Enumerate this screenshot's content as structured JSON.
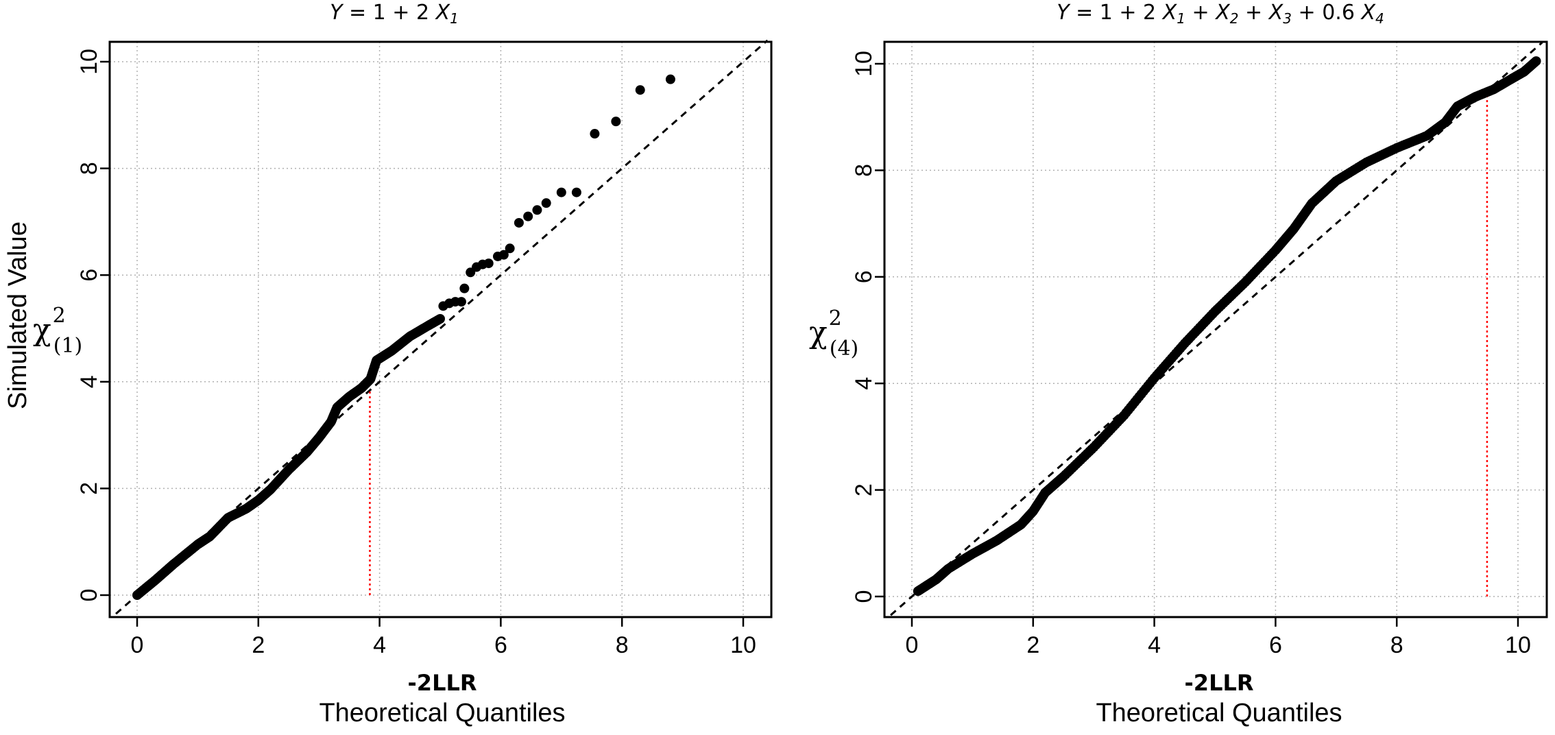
{
  "chart_data": [
    {
      "type": "scatter",
      "title": "Y = 1 + 2 X1",
      "title_parts": {
        "y": "Y",
        "eq": " = 1 + 2 ",
        "x1": "X",
        "x1sub": "1"
      },
      "xlabel_top": "-2LLR",
      "xlabel": "Theoretical Quantiles",
      "ylabel": "Simulated Value",
      "ylabel_chi": {
        "chi": "χ",
        "sup": "2",
        "sub": "(1)"
      },
      "xlim": [
        0,
        10
      ],
      "ylim": [
        0,
        10
      ],
      "xticks": [
        "0",
        "2",
        "4",
        "6",
        "8",
        "10"
      ],
      "yticks": [
        "0",
        "2",
        "4",
        "6",
        "8",
        "10"
      ],
      "grid": true,
      "reference_line": {
        "slope": 1,
        "intercept": 0,
        "style": "dashed"
      },
      "cutoff_line": {
        "x": 3.84,
        "y_from": 0,
        "y_to": 3.84,
        "color": "#ff0000"
      },
      "dense_curve": [
        [
          0.0,
          0.0
        ],
        [
          0.3,
          0.28
        ],
        [
          0.6,
          0.58
        ],
        [
          1.0,
          0.95
        ],
        [
          1.2,
          1.1
        ],
        [
          1.5,
          1.45
        ],
        [
          1.8,
          1.62
        ],
        [
          2.0,
          1.78
        ],
        [
          2.2,
          1.98
        ],
        [
          2.5,
          2.35
        ],
        [
          2.8,
          2.68
        ],
        [
          3.0,
          2.95
        ],
        [
          3.2,
          3.25
        ],
        [
          3.3,
          3.52
        ],
        [
          3.5,
          3.72
        ],
        [
          3.7,
          3.88
        ],
        [
          3.85,
          4.05
        ],
        [
          3.95,
          4.4
        ],
        [
          4.2,
          4.58
        ],
        [
          4.5,
          4.85
        ],
        [
          4.8,
          5.05
        ],
        [
          5.0,
          5.18
        ]
      ],
      "points": [
        [
          5.05,
          5.42
        ],
        [
          5.15,
          5.47
        ],
        [
          5.25,
          5.5
        ],
        [
          5.35,
          5.5
        ],
        [
          5.4,
          5.75
        ],
        [
          5.5,
          6.05
        ],
        [
          5.6,
          6.15
        ],
        [
          5.7,
          6.2
        ],
        [
          5.8,
          6.22
        ],
        [
          5.95,
          6.35
        ],
        [
          6.05,
          6.38
        ],
        [
          6.15,
          6.5
        ],
        [
          6.3,
          6.98
        ],
        [
          6.45,
          7.1
        ],
        [
          6.6,
          7.22
        ],
        [
          6.75,
          7.35
        ],
        [
          7.0,
          7.55
        ],
        [
          7.25,
          7.55
        ],
        [
          7.55,
          8.65
        ],
        [
          7.9,
          8.88
        ],
        [
          8.3,
          9.47
        ],
        [
          8.8,
          9.67
        ]
      ]
    },
    {
      "type": "scatter",
      "title": "Y = 1 + 2 X1 + X2 + X3 + 0.6 X4",
      "title_parts": {
        "y": "Y",
        "eq1": " = 1 + 2 ",
        "x1": "X",
        "x1sub": "1",
        "plus": " + ",
        "x2": "X",
        "x2sub": "2",
        "x3": "X",
        "x3sub": "3",
        "eq2": " + 0.6 ",
        "x4": "X",
        "x4sub": "4"
      },
      "xlabel_top": "-2LLR",
      "xlabel": "Theoretical Quantiles",
      "ylabel_chi": {
        "chi": "χ",
        "sup": "2",
        "sub": "(4)"
      },
      "xlim": [
        0,
        10
      ],
      "ylim": [
        0,
        10
      ],
      "xticks": [
        "0",
        "2",
        "4",
        "6",
        "8",
        "10"
      ],
      "yticks": [
        "0",
        "2",
        "4",
        "6",
        "8",
        "10"
      ],
      "grid": true,
      "reference_line": {
        "slope": 1,
        "intercept": 0,
        "style": "dashed"
      },
      "cutoff_line": {
        "x": 9.49,
        "y_from": 0,
        "y_to": 9.49,
        "color": "#ff0000"
      },
      "dense_curve": [
        [
          0.1,
          0.1
        ],
        [
          0.4,
          0.32
        ],
        [
          0.6,
          0.52
        ],
        [
          1.0,
          0.8
        ],
        [
          1.4,
          1.05
        ],
        [
          1.8,
          1.35
        ],
        [
          2.0,
          1.6
        ],
        [
          2.2,
          1.95
        ],
        [
          2.5,
          2.25
        ],
        [
          3.0,
          2.8
        ],
        [
          3.5,
          3.4
        ],
        [
          4.0,
          4.1
        ],
        [
          4.5,
          4.75
        ],
        [
          5.0,
          5.35
        ],
        [
          5.5,
          5.9
        ],
        [
          6.0,
          6.5
        ],
        [
          6.3,
          6.9
        ],
        [
          6.6,
          7.38
        ],
        [
          7.0,
          7.8
        ],
        [
          7.5,
          8.15
        ],
        [
          8.0,
          8.42
        ],
        [
          8.5,
          8.65
        ],
        [
          8.8,
          8.9
        ],
        [
          9.0,
          9.2
        ],
        [
          9.3,
          9.38
        ],
        [
          9.6,
          9.52
        ],
        [
          9.9,
          9.72
        ],
        [
          10.1,
          9.85
        ],
        [
          10.3,
          10.05
        ]
      ],
      "points": []
    }
  ]
}
